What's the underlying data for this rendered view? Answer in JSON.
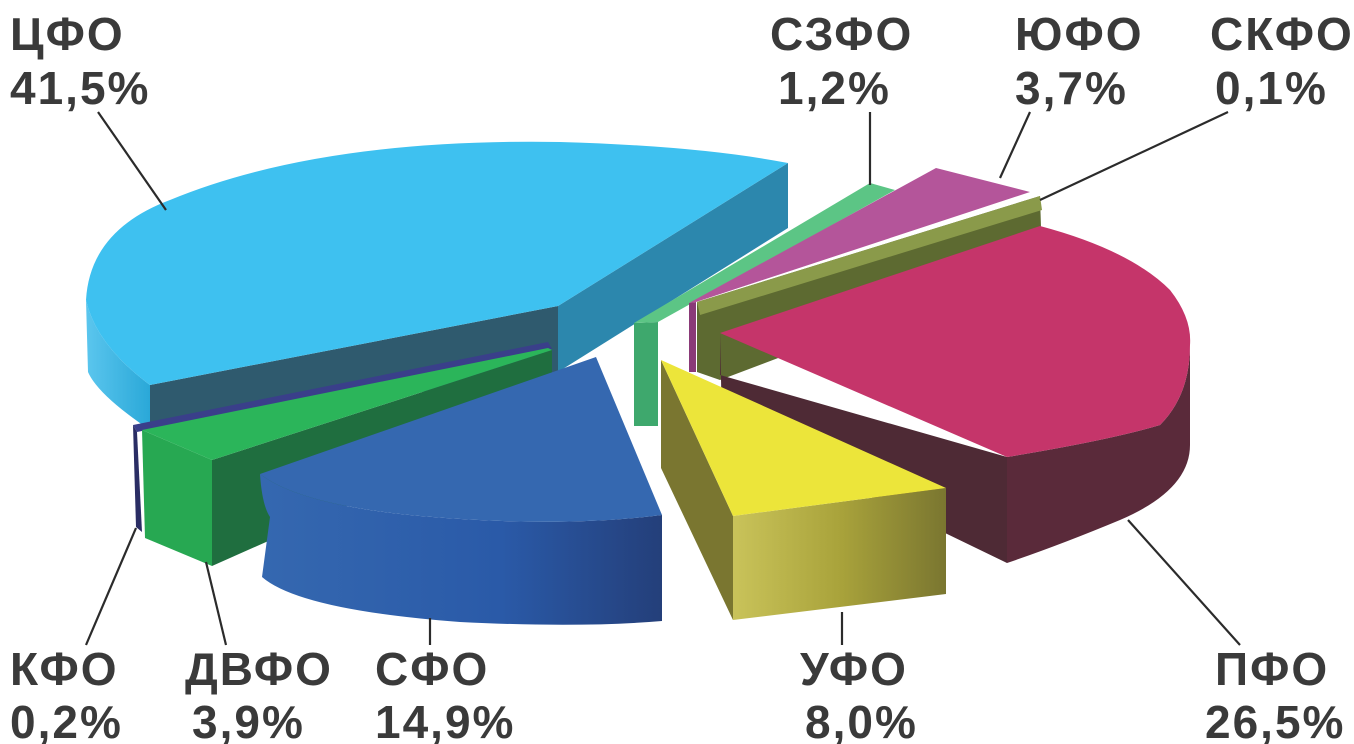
{
  "chart_data": {
    "type": "pie",
    "style": "3d-exploded",
    "slices": [
      {
        "label": "ЦФО",
        "value": 41.5,
        "value_text": "41,5%",
        "color": "#3ec1f0"
      },
      {
        "label": "СЗФО",
        "value": 1.2,
        "value_text": "1,2%",
        "color": "#5cc585"
      },
      {
        "label": "ЮФО",
        "value": 3.7,
        "value_text": "3,7%",
        "color": "#b4559a"
      },
      {
        "label": "СКФО",
        "value": 0.1,
        "value_text": "0,1%",
        "color": "#8a9a4a"
      },
      {
        "label": "ПФО",
        "value": 26.5,
        "value_text": "26,5%",
        "color": "#c5356a"
      },
      {
        "label": "УФО",
        "value": 8.0,
        "value_text": "8,0%",
        "color": "#ece53a"
      },
      {
        "label": "СФО",
        "value": 14.9,
        "value_text": "14,9%",
        "color": "#3568b0"
      },
      {
        "label": "ДВФО",
        "value": 3.9,
        "value_text": "3,9%",
        "color": "#27a852"
      },
      {
        "label": "КФО",
        "value": 0.2,
        "value_text": "0,2%",
        "color": "#3a3f8a"
      }
    ]
  }
}
